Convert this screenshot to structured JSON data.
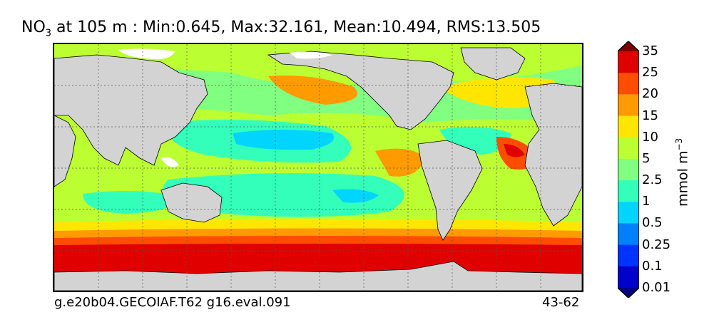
{
  "title": {
    "variable_main": "NO",
    "variable_sub": "3",
    "rest": " at 105 m : Min:0.645, Max:32.161, Mean:10.494, RMS:13.505"
  },
  "footer": {
    "left": "g.e20b04.GECOIAF.T62 g16.eval.091",
    "right": "43-62"
  },
  "colorbar": {
    "unit_main": "mmol m",
    "unit_sup": "−3",
    "levels": [
      "0.01",
      "0.1",
      "0.25",
      "0.5",
      "1",
      "2.5",
      "5",
      "10",
      "15",
      "20",
      "25",
      "35"
    ],
    "colors": [
      "#000080",
      "#0000cd",
      "#0033ff",
      "#0080ff",
      "#00d5ff",
      "#33ffbb",
      "#80ff80",
      "#bbff33",
      "#ffe600",
      "#ff9a00",
      "#ff4d00",
      "#e00000",
      "#800000"
    ]
  },
  "map": {
    "land_color": "#d3d3d3",
    "ice_color": "#ffffff"
  }
}
